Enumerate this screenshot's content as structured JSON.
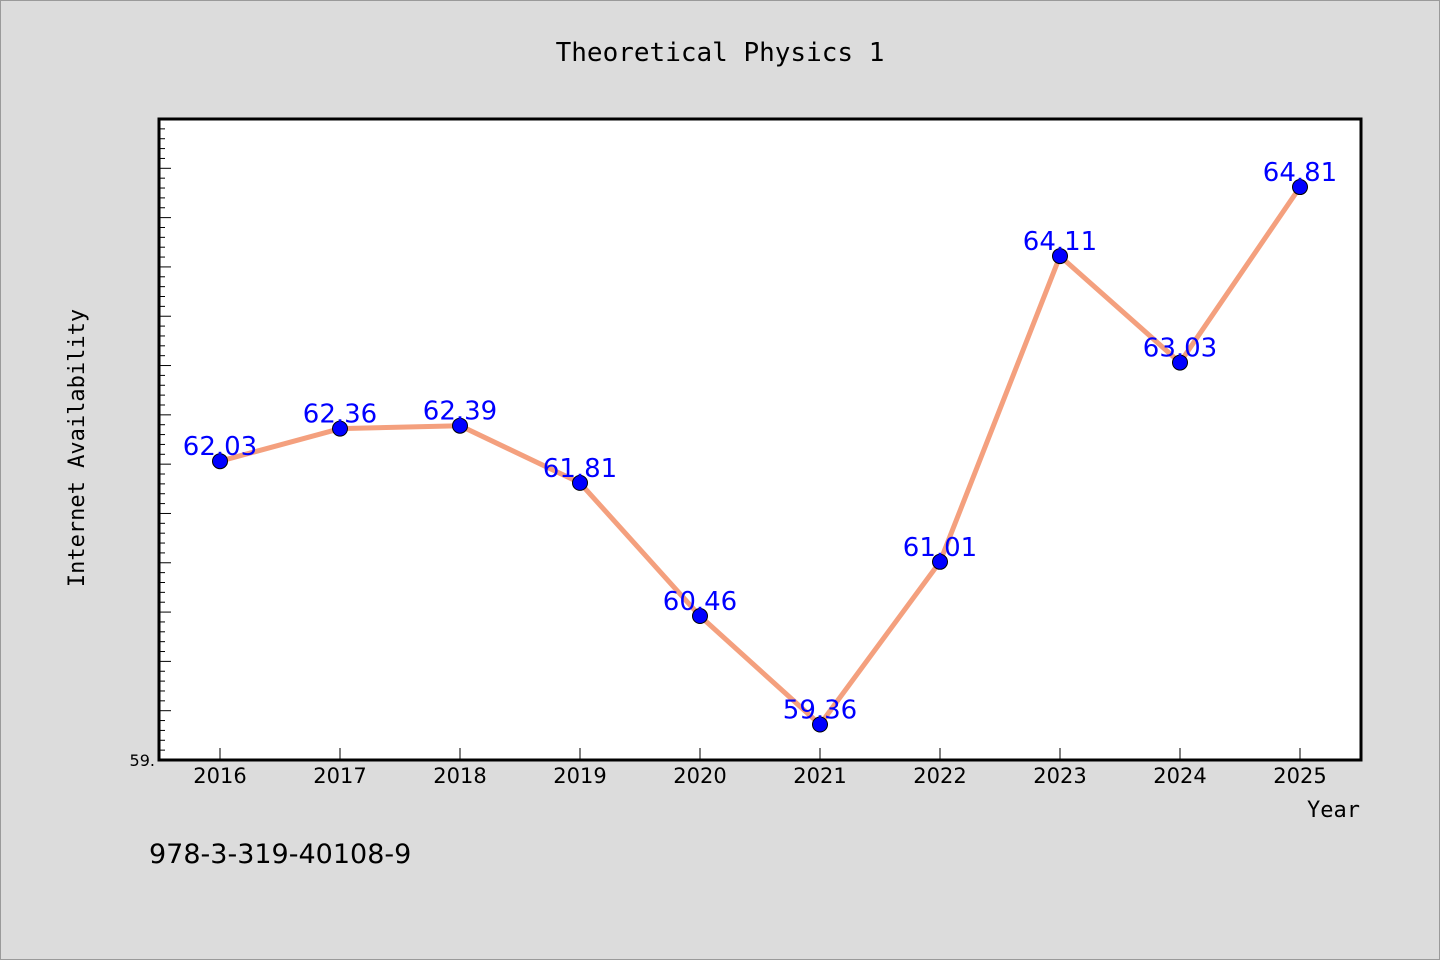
{
  "chart_data": {
    "type": "line",
    "title": "Theoretical Physics 1",
    "xlabel": "Year",
    "ylabel": "Internet Availability",
    "categories": [
      "2016",
      "2017",
      "2018",
      "2019",
      "2020",
      "2021",
      "2022",
      "2023",
      "2024",
      "2025"
    ],
    "series": [
      {
        "values": [
          62.03,
          62.36,
          62.39,
          61.81,
          60.46,
          59.36,
          61.01,
          64.11,
          63.03,
          64.81
        ],
        "labels": [
          "62.03",
          "62.36",
          "62.39",
          "61.81",
          "60.46",
          "59.36",
          "61.01",
          "64.11",
          "63.03",
          "64.81"
        ],
        "line_color": "#f4a07e",
        "marker_color": "#0000ff"
      }
    ],
    "ylim": [
      59.0,
      65.5
    ],
    "y_tick_label": "59.",
    "grid": false,
    "legend": "none"
  },
  "footer": {
    "isbn": "978-3-319-40108-9"
  }
}
